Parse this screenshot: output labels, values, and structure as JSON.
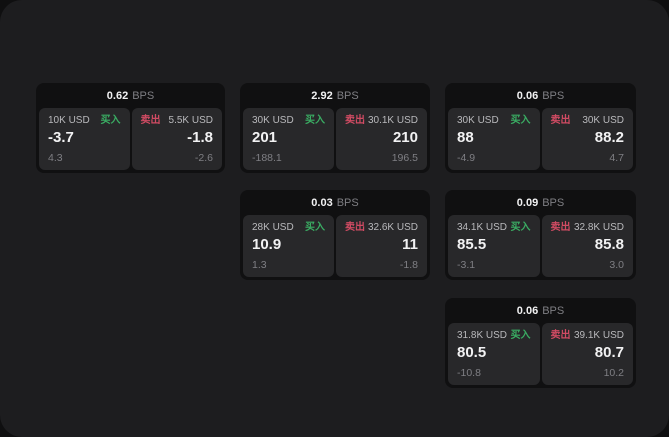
{
  "theme": {
    "backdrop": "#0f0f10",
    "surface": "#1d1d1f",
    "card_bg": "#101011",
    "panel_bg": "#28282a",
    "text_primary": "#f2f2f3",
    "text_secondary": "#b9b9bc",
    "text_muted": "#7f7f84",
    "buy_color": "#3aad63",
    "sell_color": "#d04b63"
  },
  "labels": {
    "bps_unit": "BPS",
    "buy": "买入",
    "sell": "卖出"
  },
  "cards": [
    {
      "bps": "0.62",
      "buy": {
        "amount": "10K USD",
        "value": "-3.7",
        "delta": "4.3"
      },
      "sell": {
        "amount": "5.5K USD",
        "value": "-1.8",
        "delta": "-2.6"
      }
    },
    {
      "bps": "2.92",
      "buy": {
        "amount": "30K USD",
        "value": "201",
        "delta": "-188.1"
      },
      "sell": {
        "amount": "30.1K USD",
        "value": "210",
        "delta": "196.5"
      }
    },
    {
      "bps": "0.06",
      "buy": {
        "amount": "30K USD",
        "value": "88",
        "delta": "-4.9"
      },
      "sell": {
        "amount": "30K USD",
        "value": "88.2",
        "delta": "4.7"
      }
    },
    {
      "bps": "0.03",
      "buy": {
        "amount": "28K USD",
        "value": "10.9",
        "delta": "1.3"
      },
      "sell": {
        "amount": "32.6K USD",
        "value": "11",
        "delta": "-1.8"
      }
    },
    {
      "bps": "0.09",
      "buy": {
        "amount": "34.1K USD",
        "value": "85.5",
        "delta": "-3.1"
      },
      "sell": {
        "amount": "32.8K USD",
        "value": "85.8",
        "delta": "3.0"
      }
    },
    {
      "bps": "0.06",
      "buy": {
        "amount": "31.8K USD",
        "value": "80.5",
        "delta": "-10.8"
      },
      "sell": {
        "amount": "39.1K USD",
        "value": "80.7",
        "delta": "10.2"
      }
    }
  ]
}
